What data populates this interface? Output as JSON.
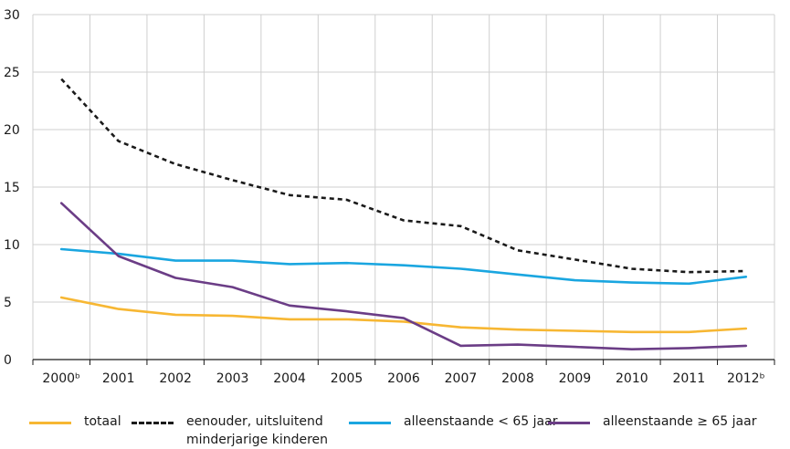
{
  "chart_data": {
    "type": "line",
    "categories": [
      "2000ᵇ",
      "2001",
      "2002",
      "2003",
      "2004",
      "2005",
      "2006",
      "2007",
      "2008",
      "2009",
      "2010",
      "2011",
      "2012ᵇ"
    ],
    "ylim": [
      0,
      30
    ],
    "yticks": [
      "0",
      "5",
      "10",
      "15",
      "20",
      "25",
      "30"
    ],
    "grid": true,
    "legend_position": "bottom",
    "series": [
      {
        "name": "totaal",
        "color": "#f7b733",
        "dash": "solid",
        "values": [
          5.4,
          4.4,
          3.9,
          3.8,
          3.5,
          3.5,
          3.3,
          2.8,
          2.6,
          2.5,
          2.4,
          2.4,
          2.7
        ]
      },
      {
        "name_line1": "eenouder, uitsluitend",
        "name_line2": "minderjarige kinderen",
        "color": "#1a1a1a",
        "dash": "dashed",
        "values": [
          24.4,
          19.0,
          17.0,
          15.6,
          14.3,
          13.9,
          12.1,
          11.6,
          9.5,
          8.7,
          7.9,
          7.6,
          7.7
        ]
      },
      {
        "name": "alleenstaande < 65 jaar",
        "color": "#1aa6e0",
        "dash": "solid",
        "values": [
          9.6,
          9.2,
          8.6,
          8.6,
          8.3,
          8.4,
          8.2,
          7.9,
          7.4,
          6.9,
          6.7,
          6.6,
          7.2
        ]
      },
      {
        "name": "alleenstaande ≥ 65 jaar",
        "color": "#6b3d86",
        "dash": "solid",
        "values": [
          13.6,
          9.0,
          7.1,
          6.3,
          4.7,
          4.2,
          3.6,
          1.2,
          1.3,
          1.1,
          0.9,
          1.0,
          1.2
        ]
      }
    ]
  }
}
